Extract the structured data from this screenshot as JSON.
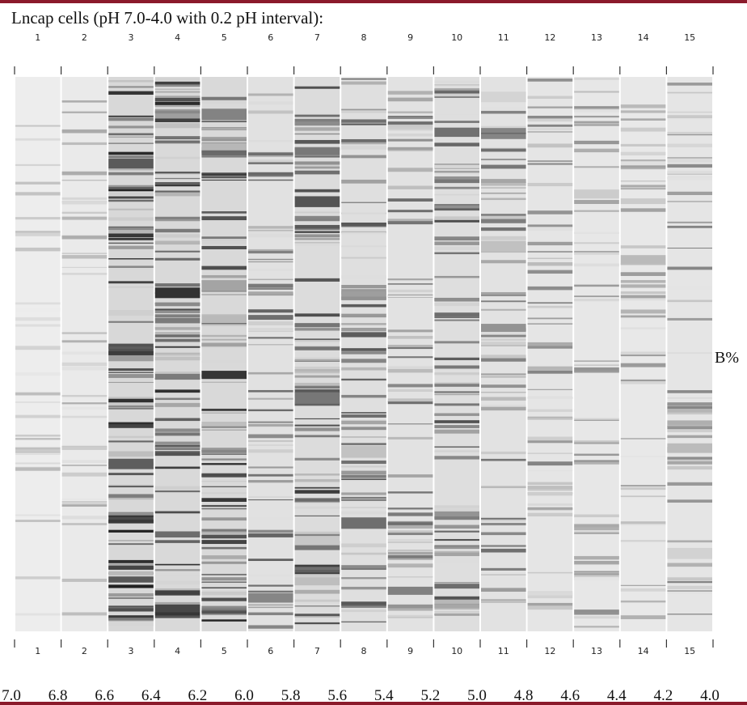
{
  "title": "Lncap cells (pH 7.0-4.0 with 0.2 pH interval):",
  "lanes_top": [
    "1",
    "2",
    "3",
    "4",
    "5",
    "6",
    "7",
    "8",
    "9",
    "10",
    "11",
    "12",
    "13",
    "14",
    "15"
  ],
  "lanes_bottom": [
    "1",
    "2",
    "3",
    "4",
    "5",
    "6",
    "7",
    "8",
    "9",
    "10",
    "11",
    "12",
    "13",
    "14",
    "15"
  ],
  "y_axis_label": "B%",
  "ph_labels": [
    "7.0",
    "6.8",
    "6.6",
    "6.4",
    "6.2",
    "6.0",
    "5.8",
    "5.6",
    "5.4",
    "5.2",
    "5.0",
    "4.8",
    "4.6",
    "4.4",
    "4.2",
    "4.0"
  ]
}
